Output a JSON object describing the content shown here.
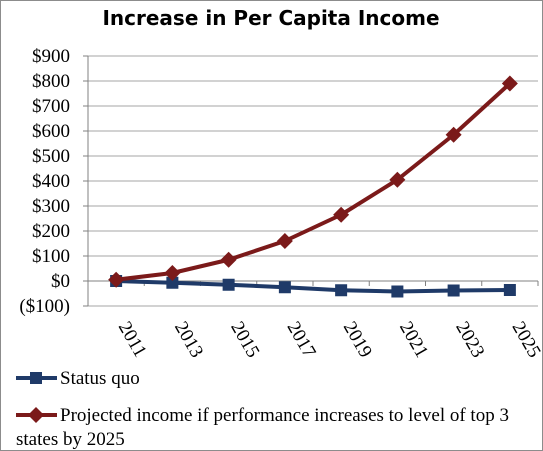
{
  "chart_data": {
    "type": "line",
    "title": "Increase in Per Capita Income",
    "x": [
      "2011",
      "2013",
      "2015",
      "2017",
      "2019",
      "2021",
      "2023",
      "2025"
    ],
    "yticks": [
      "$900",
      "$800",
      "$700",
      "$600",
      "$500",
      "$400",
      "$300",
      "$200",
      "$100",
      "$0",
      "($100)"
    ],
    "ylim": [
      -100,
      900
    ],
    "grid": true,
    "legend_position": "bottom",
    "series": [
      {
        "name": "Status quo",
        "values": [
          0,
          -7,
          -15,
          -25,
          -37,
          -42,
          -38,
          -36
        ],
        "color": "#1f3a68",
        "marker": "square"
      },
      {
        "name": "Projected income if performance increases to level of top 3 states by 2025",
        "values": [
          5,
          32,
          85,
          160,
          265,
          405,
          585,
          790
        ],
        "color": "#7b1a1a",
        "marker": "diamond"
      }
    ]
  }
}
